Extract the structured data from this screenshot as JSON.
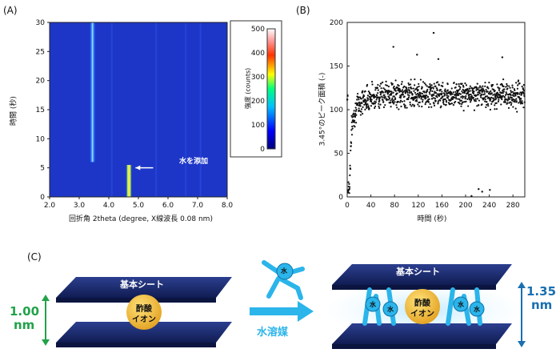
{
  "panels": {
    "a": "(A)",
    "b": "(B)",
    "c": "(C)"
  },
  "chart_data": [
    {
      "type": "heatmap",
      "panel": "(A)",
      "xlabel": "回折角 2theta (degree, X線波長 0.08 nm)",
      "ylabel": "時間 (秒)",
      "xlim": [
        2.0,
        8.0
      ],
      "ylim": [
        0,
        30
      ],
      "xticks": [
        "2.0",
        "3.0",
        "4.0",
        "5.0",
        "6.0",
        "7.0",
        "8.0"
      ],
      "yticks": [
        "0",
        "5",
        "10",
        "15",
        "20",
        "25",
        "30"
      ],
      "colorbar": {
        "label": "強度 (counts)",
        "range": [
          0,
          500
        ],
        "ticks": [
          "0",
          "100",
          "200",
          "300",
          "400",
          "500"
        ]
      },
      "features": [
        {
          "two_theta": 3.45,
          "time_range": [
            6,
            30
          ],
          "intensity": 220
        },
        {
          "two_theta": 4.68,
          "time_range": [
            0,
            5.5
          ],
          "intensity": 480
        }
      ],
      "annotation": "水を添加",
      "annotation_time": 5
    },
    {
      "type": "scatter",
      "panel": "(B)",
      "xlabel": "時間 (秒)",
      "ylabel": "3.45°のピーク面積 (-)",
      "xlim": [
        0,
        300
      ],
      "ylim": [
        0,
        200
      ],
      "xticks": [
        "0",
        "40",
        "80",
        "120",
        "160",
        "200",
        "240",
        "280"
      ],
      "yticks": [
        "0",
        "50",
        "100",
        "150",
        "200"
      ],
      "series": [
        {
          "description": "plateau ~116 with noise after rise",
          "points_sample": [
            [
              1,
              12
            ],
            [
              2,
              10
            ],
            [
              3,
              14
            ],
            [
              4,
              9
            ],
            [
              5,
              38
            ],
            [
              6,
              55
            ],
            [
              8,
              82
            ],
            [
              10,
              90
            ],
            [
              14,
              100
            ],
            [
              20,
              108
            ],
            [
              30,
              112
            ],
            [
              40,
              115
            ],
            [
              60,
              118
            ],
            [
              80,
              117
            ],
            [
              100,
              118
            ],
            [
              120,
              119
            ],
            [
              140,
              118
            ],
            [
              160,
              117
            ],
            [
              180,
              118
            ],
            [
              200,
              117
            ],
            [
              220,
              118
            ],
            [
              240,
              117
            ],
            [
              260,
              116
            ],
            [
              280,
              117
            ],
            [
              300,
              116
            ]
          ],
          "outliers": [
            [
              78,
              172
            ],
            [
              146,
              188
            ],
            [
              210,
              1
            ],
            [
              222,
              9
            ],
            [
              228,
              6
            ],
            [
              241,
              8
            ],
            [
              118,
              163
            ],
            [
              262,
              160
            ],
            [
              154,
              158
            ]
          ]
        }
      ]
    }
  ],
  "diagram": {
    "sheet_top_left": "基本シート",
    "sheet_top_right": "基本シート",
    "ion_left": [
      "酢酸",
      "イオン"
    ],
    "ion_right": [
      "酢酸",
      "イオン"
    ],
    "gap_left": [
      "1.00",
      "nm"
    ],
    "gap_right": [
      "1.35",
      "nm"
    ],
    "arrow_label": "水溶媒",
    "water_char": "水"
  },
  "colors": {
    "green": "#22a24a",
    "blue": "#1a6fb0",
    "cyan": "#2bb5ea",
    "navy": "#1c2e73",
    "ion": "#f0b330"
  }
}
